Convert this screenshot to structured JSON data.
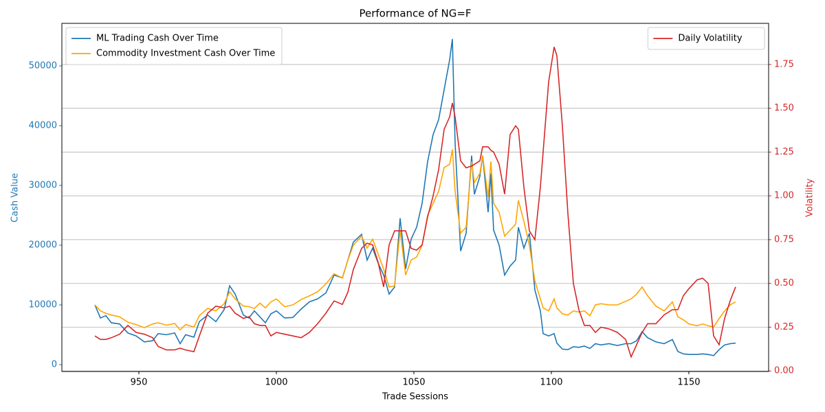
{
  "chart_data": {
    "type": "line",
    "title": "Performance of NG=F",
    "xlabel": "Trade Sessions",
    "ylabel": "Cash Value",
    "y2label": "Volatility",
    "ylabel_color": "#1f77b4",
    "y2label_color": "#d62728",
    "xlim": [
      922,
      1179
    ],
    "ylim": [
      -1150,
      57126
    ],
    "y2lim": [
      -0.003,
      1.985
    ],
    "xticks": [
      950,
      1000,
      1050,
      1100,
      1150
    ],
    "yticks": [
      0,
      10000,
      20000,
      30000,
      40000,
      50000
    ],
    "y2ticks": [
      {
        "value": 0,
        "label": "0.00"
      },
      {
        "value": 0.25,
        "label": "0.25"
      },
      {
        "value": 0.5,
        "label": "0.50"
      },
      {
        "value": 0.75,
        "label": "0.75"
      },
      {
        "value": 1,
        "label": "1.00"
      },
      {
        "value": 1.25,
        "label": "1.25"
      },
      {
        "value": 1.5,
        "label": "1.50"
      },
      {
        "value": 1.75,
        "label": "1.75"
      }
    ],
    "grid": "y2",
    "legend": "upper left",
    "legend2": "upper right",
    "x": [
      934,
      936,
      938,
      940,
      943,
      946,
      949,
      952,
      955,
      957,
      960,
      963,
      965,
      967,
      970,
      972,
      975,
      978,
      981,
      983,
      985,
      988,
      990,
      992,
      994,
      996,
      998,
      1000,
      1003,
      1006,
      1009,
      1012,
      1015,
      1018,
      1021,
      1024,
      1026,
      1028,
      1031,
      1033,
      1035,
      1037,
      1039,
      1041,
      1043,
      1045,
      1047,
      1049,
      1051,
      1053,
      1055,
      1057,
      1059,
      1061,
      1063,
      1064,
      1065,
      1067,
      1069,
      1071,
      1072,
      1074,
      1075,
      1077,
      1078,
      1079,
      1081,
      1083,
      1085,
      1087,
      1088,
      1090,
      1092,
      1094,
      1096,
      1097,
      1099,
      1101,
      1102,
      1104,
      1106,
      1108,
      1110,
      1112,
      1114,
      1116,
      1118,
      1121,
      1124,
      1127,
      1129,
      1131,
      1133,
      1135,
      1138,
      1141,
      1144,
      1146,
      1148,
      1150,
      1153,
      1155,
      1157,
      1159,
      1161,
      1163,
      1165,
      1167
    ],
    "series": [
      {
        "name": "ML Trading Cash Over Time",
        "color": "#1f77b4",
        "values": [
          10000,
          7800,
          8200,
          7000,
          6800,
          5300,
          4800,
          3800,
          4000,
          5200,
          5000,
          5300,
          3500,
          5000,
          4600,
          7200,
          8300,
          7200,
          9200,
          13200,
          11800,
          8300,
          7800,
          9000,
          8000,
          7000,
          8500,
          9000,
          7800,
          7900,
          9300,
          10500,
          11000,
          12000,
          15000,
          14500,
          17500,
          20500,
          21800,
          17500,
          19500,
          17000,
          15000,
          11800,
          13000,
          24500,
          16000,
          21000,
          23000,
          27000,
          34000,
          38500,
          41000,
          46000,
          51000,
          54500,
          37000,
          19000,
          22000,
          35000,
          28500,
          31500,
          35000,
          25500,
          32000,
          22500,
          20000,
          15000,
          16500,
          17500,
          23000,
          19500,
          22000,
          12500,
          9000,
          5200,
          4800,
          5200,
          3600,
          2600,
          2500,
          3000,
          2900,
          3100,
          2700,
          3500,
          3300,
          3500,
          3200,
          3500,
          3500,
          4000,
          5500,
          4500,
          3800,
          3500,
          4200,
          2200,
          1800,
          1700,
          1700,
          1800,
          1700,
          1500,
          2500,
          3300,
          3500,
          3600
        ]
      },
      {
        "name": "Commodity Investment Cash Over Time",
        "color": "#ffa500",
        "values": [
          10000,
          9000,
          8600,
          8300,
          8000,
          7100,
          6700,
          6200,
          6800,
          7000,
          6600,
          6900,
          5800,
          6700,
          6300,
          8200,
          9400,
          9000,
          10200,
          12200,
          11000,
          9800,
          9700,
          9400,
          10300,
          9500,
          10500,
          11000,
          9700,
          10000,
          10900,
          11500,
          12200,
          13500,
          15200,
          14500,
          17500,
          20000,
          21500,
          19500,
          21000,
          18500,
          16000,
          13000,
          13200,
          22500,
          15000,
          17500,
          18000,
          20000,
          25000,
          27000,
          29000,
          33000,
          33500,
          36000,
          29000,
          22000,
          23000,
          34000,
          30500,
          32000,
          35000,
          28000,
          34000,
          27000,
          25500,
          21500,
          22500,
          23500,
          27500,
          24000,
          20000,
          14000,
          11000,
          9500,
          9000,
          11000,
          9500,
          8500,
          8300,
          9000,
          8800,
          9000,
          8200,
          10000,
          10200,
          10000,
          10000,
          10600,
          11000,
          11800,
          13000,
          11500,
          9800,
          9000,
          10500,
          8000,
          7500,
          6800,
          6500,
          6800,
          6500,
          6300,
          7700,
          9000,
          10000,
          10500
        ]
      },
      {
        "name": "Daily Volatility",
        "color": "#d62728",
        "axis": "y2",
        "values": [
          0.2,
          0.18,
          0.18,
          0.19,
          0.21,
          0.26,
          0.22,
          0.21,
          0.19,
          0.14,
          0.12,
          0.12,
          0.13,
          0.12,
          0.11,
          0.2,
          0.33,
          0.37,
          0.36,
          0.37,
          0.33,
          0.3,
          0.31,
          0.27,
          0.26,
          0.26,
          0.2,
          0.22,
          0.21,
          0.2,
          0.19,
          0.22,
          0.27,
          0.33,
          0.4,
          0.38,
          0.45,
          0.58,
          0.7,
          0.73,
          0.72,
          0.62,
          0.48,
          0.72,
          0.8,
          0.8,
          0.8,
          0.7,
          0.69,
          0.72,
          0.88,
          1.0,
          1.15,
          1.38,
          1.45,
          1.53,
          1.45,
          1.2,
          1.16,
          1.17,
          1.18,
          1.2,
          1.28,
          1.28,
          1.26,
          1.25,
          1.18,
          1.01,
          1.35,
          1.4,
          1.38,
          1.05,
          0.8,
          0.75,
          1.05,
          1.25,
          1.65,
          1.85,
          1.8,
          1.4,
          0.9,
          0.5,
          0.35,
          0.26,
          0.26,
          0.22,
          0.25,
          0.24,
          0.22,
          0.18,
          0.08,
          0.15,
          0.22,
          0.27,
          0.27,
          0.32,
          0.35,
          0.35,
          0.43,
          0.47,
          0.52,
          0.53,
          0.5,
          0.2,
          0.15,
          0.3,
          0.4,
          0.48
        ]
      }
    ]
  }
}
